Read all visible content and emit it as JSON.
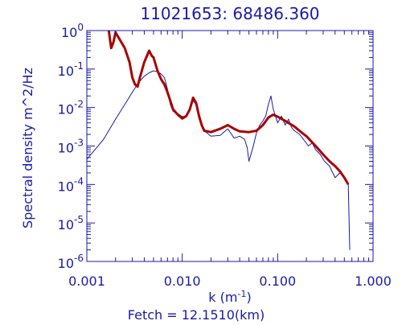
{
  "chart_data": {
    "type": "line",
    "title": "11021653: 68486.360",
    "xlabel_base": "k (m",
    "xlabel_exp": "-1",
    "xlabel_tail": ")",
    "ylabel": "Spectral density m^2/Hz",
    "footer": "Fetch = 12.1510(km)",
    "xscale": "log",
    "yscale": "log",
    "xlim": [
      0.001,
      1.0
    ],
    "ylim": [
      1e-06,
      1.0
    ],
    "grid": false,
    "colors": {
      "axes": "#1a1aa6",
      "blue_series": "#1a1aa6",
      "red_series": "#a80000"
    },
    "x_ticks": [
      {
        "value": 0.001,
        "label": "0.001"
      },
      {
        "value": 0.01,
        "label": "0.010"
      },
      {
        "value": 0.1,
        "label": "0.100"
      },
      {
        "value": 1.0,
        "label": "1.000"
      }
    ],
    "y_ticks": [
      {
        "value": 1,
        "base": "10",
        "exp": "0"
      },
      {
        "value": 0.1,
        "base": "10",
        "exp": "-1"
      },
      {
        "value": 0.01,
        "base": "10",
        "exp": "-2"
      },
      {
        "value": 0.001,
        "base": "10",
        "exp": "-3"
      },
      {
        "value": 0.0001,
        "base": "10",
        "exp": "-4"
      },
      {
        "value": 1e-05,
        "base": "10",
        "exp": "-5"
      },
      {
        "value": 1e-06,
        "base": "10",
        "exp": "-6"
      }
    ],
    "series": [
      {
        "color": "blue_series",
        "points": [
          [
            0.001,
            0.00045
          ],
          [
            0.0015,
            0.0015
          ],
          [
            0.002,
            0.005
          ],
          [
            0.0025,
            0.012
          ],
          [
            0.003,
            0.025
          ],
          [
            0.0035,
            0.045
          ],
          [
            0.004,
            0.065
          ],
          [
            0.0045,
            0.08
          ],
          [
            0.005,
            0.09
          ],
          [
            0.0055,
            0.085
          ],
          [
            0.006,
            0.075
          ],
          [
            0.0065,
            0.06
          ],
          [
            0.007,
            0.03
          ],
          [
            0.0075,
            0.012
          ],
          [
            0.008,
            0.008
          ],
          [
            0.009,
            0.007
          ],
          [
            0.01,
            0.0058
          ],
          [
            0.011,
            0.006
          ],
          [
            0.012,
            0.009
          ],
          [
            0.013,
            0.015
          ],
          [
            0.014,
            0.012
          ],
          [
            0.015,
            0.005
          ],
          [
            0.017,
            0.0025
          ],
          [
            0.02,
            0.0018
          ],
          [
            0.025,
            0.0019
          ],
          [
            0.03,
            0.0028
          ],
          [
            0.035,
            0.0016
          ],
          [
            0.04,
            0.0018
          ],
          [
            0.045,
            0.0015
          ],
          [
            0.048,
            0.0009
          ],
          [
            0.05,
            0.0004
          ],
          [
            0.055,
            0.0009
          ],
          [
            0.06,
            0.0022
          ],
          [
            0.065,
            0.0035
          ],
          [
            0.07,
            0.0045
          ],
          [
            0.075,
            0.006
          ],
          [
            0.08,
            0.012
          ],
          [
            0.085,
            0.02
          ],
          [
            0.09,
            0.009
          ],
          [
            0.095,
            0.006
          ],
          [
            0.1,
            0.004
          ],
          [
            0.11,
            0.006
          ],
          [
            0.12,
            0.0035
          ],
          [
            0.13,
            0.005
          ],
          [
            0.14,
            0.003
          ],
          [
            0.15,
            0.0025
          ],
          [
            0.17,
            0.002
          ],
          [
            0.19,
            0.0014
          ],
          [
            0.21,
            0.001
          ],
          [
            0.23,
            0.0012
          ],
          [
            0.25,
            0.0008
          ],
          [
            0.28,
            0.0006
          ],
          [
            0.31,
            0.0004
          ],
          [
            0.35,
            0.0003
          ],
          [
            0.4,
            0.00015
          ],
          [
            0.45,
            0.0002
          ],
          [
            0.5,
            0.00015
          ],
          [
            0.55,
            0.0001
          ],
          [
            0.57,
            2e-06
          ]
        ]
      },
      {
        "color": "red_series",
        "points": [
          [
            0.0017,
            1.0
          ],
          [
            0.0018,
            0.35
          ],
          [
            0.0019,
            0.5
          ],
          [
            0.002,
            0.9
          ],
          [
            0.0022,
            0.6
          ],
          [
            0.0025,
            0.35
          ],
          [
            0.0028,
            0.15
          ],
          [
            0.003,
            0.06
          ],
          [
            0.0032,
            0.04
          ],
          [
            0.0034,
            0.035
          ],
          [
            0.0036,
            0.06
          ],
          [
            0.004,
            0.15
          ],
          [
            0.0045,
            0.3
          ],
          [
            0.0048,
            0.22
          ],
          [
            0.005,
            0.2
          ],
          [
            0.0055,
            0.09
          ],
          [
            0.006,
            0.055
          ],
          [
            0.0065,
            0.04
          ],
          [
            0.007,
            0.025
          ],
          [
            0.0075,
            0.015
          ],
          [
            0.008,
            0.009
          ],
          [
            0.009,
            0.0065
          ],
          [
            0.01,
            0.0052
          ],
          [
            0.011,
            0.006
          ],
          [
            0.012,
            0.009
          ],
          [
            0.013,
            0.018
          ],
          [
            0.014,
            0.013
          ],
          [
            0.015,
            0.006
          ],
          [
            0.016,
            0.0035
          ],
          [
            0.017,
            0.0025
          ],
          [
            0.02,
            0.0023
          ],
          [
            0.025,
            0.0028
          ],
          [
            0.03,
            0.0035
          ],
          [
            0.035,
            0.0028
          ],
          [
            0.04,
            0.0024
          ],
          [
            0.05,
            0.0023
          ],
          [
            0.06,
            0.0025
          ],
          [
            0.07,
            0.0035
          ],
          [
            0.08,
            0.0055
          ],
          [
            0.09,
            0.0065
          ],
          [
            0.1,
            0.0058
          ],
          [
            0.12,
            0.0045
          ],
          [
            0.15,
            0.0032
          ],
          [
            0.18,
            0.0022
          ],
          [
            0.2,
            0.0018
          ],
          [
            0.25,
            0.001
          ],
          [
            0.3,
            0.0006
          ],
          [
            0.35,
            0.0004
          ],
          [
            0.4,
            0.0003
          ],
          [
            0.45,
            0.00022
          ],
          [
            0.5,
            0.00015
          ],
          [
            0.55,
            0.0001
          ]
        ]
      }
    ]
  }
}
